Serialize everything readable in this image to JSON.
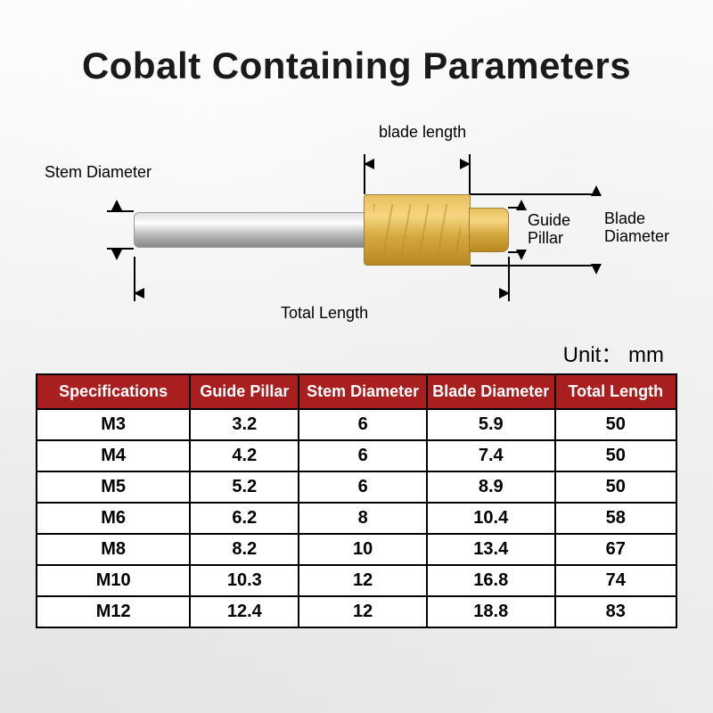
{
  "title": "Cobalt Containing Parameters",
  "unit_label": "Unit： mm",
  "diagram": {
    "labels": {
      "stem_diameter": "Stem Diameter",
      "blade_length": "blade length",
      "guide_pillar": "Guide\nPillar",
      "blade_diameter": "Blade\nDiameter",
      "total_length": "Total Length"
    },
    "colors": {
      "stem_metal": "#c0c0c0",
      "blade_coating": "#d4a840",
      "dimension_line": "#000000"
    }
  },
  "table": {
    "header_bg": "#a91e1e",
    "border_color": "#000000",
    "columns": [
      "Specifications",
      "Guide Pillar",
      "Stem Diameter",
      "Blade Diameter",
      "Total Length"
    ],
    "rows": [
      [
        "M3",
        "3.2",
        "6",
        "5.9",
        "50"
      ],
      [
        "M4",
        "4.2",
        "6",
        "7.4",
        "50"
      ],
      [
        "M5",
        "5.2",
        "6",
        "8.9",
        "50"
      ],
      [
        "M6",
        "6.2",
        "8",
        "10.4",
        "58"
      ],
      [
        "M8",
        "8.2",
        "10",
        "13.4",
        "67"
      ],
      [
        "M10",
        "10.3",
        "12",
        "16.8",
        "74"
      ],
      [
        "M12",
        "12.4",
        "12",
        "18.8",
        "83"
      ]
    ]
  }
}
